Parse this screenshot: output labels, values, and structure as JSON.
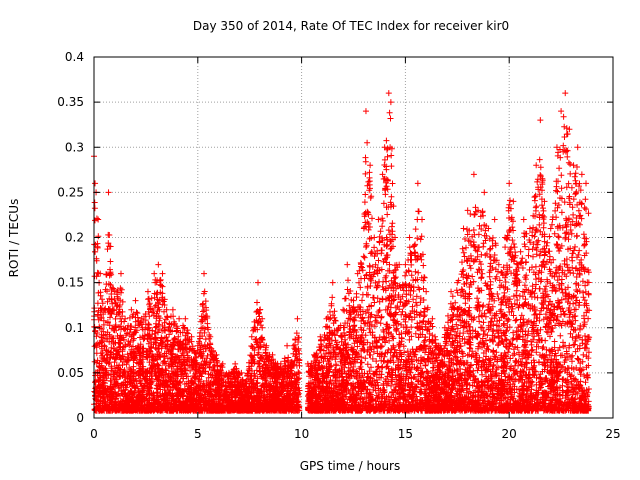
{
  "chart_data": {
    "type": "scatter",
    "title": "Day 350 of 2014, Rate Of TEC Index for receiver kir0",
    "xlabel": "GPS time / hours",
    "ylabel": "ROTI / TECUs",
    "xlim": [
      0,
      25
    ],
    "ylim": [
      0,
      0.4
    ],
    "x_ticks": [
      0,
      5,
      10,
      15,
      20,
      25
    ],
    "y_ticks": [
      0,
      0.05,
      0.1,
      0.15,
      0.2,
      0.25,
      0.3,
      0.35,
      0.4
    ],
    "x_tick_labels": [
      "0",
      "5",
      "10",
      "15",
      "20",
      "25"
    ],
    "y_tick_labels": [
      "0",
      "0.05",
      "0.1",
      "0.15",
      "0.2",
      "0.25",
      "0.3",
      "0.35",
      "0.4"
    ],
    "grid": true,
    "marker": "plus",
    "marker_color": "#ff0000",
    "series": [
      {
        "name": "ROTI",
        "description": "dense point cloud; listed points are the estimated per-interval upper envelope",
        "points": [
          [
            0.0,
            0.29
          ],
          [
            0.05,
            0.26
          ],
          [
            0.1,
            0.25
          ],
          [
            0.2,
            0.22
          ],
          [
            0.3,
            0.16
          ],
          [
            0.5,
            0.12
          ],
          [
            0.7,
            0.25
          ],
          [
            0.8,
            0.19
          ],
          [
            1.0,
            0.14
          ],
          [
            1.3,
            0.16
          ],
          [
            1.5,
            0.11
          ],
          [
            1.8,
            0.12
          ],
          [
            2.0,
            0.13
          ],
          [
            2.3,
            0.11
          ],
          [
            2.6,
            0.14
          ],
          [
            2.9,
            0.16
          ],
          [
            3.1,
            0.17
          ],
          [
            3.3,
            0.16
          ],
          [
            3.5,
            0.12
          ],
          [
            3.8,
            0.12
          ],
          [
            4.1,
            0.11
          ],
          [
            4.4,
            0.11
          ],
          [
            4.7,
            0.09
          ],
          [
            5.0,
            0.08
          ],
          [
            5.3,
            0.16
          ],
          [
            5.6,
            0.09
          ],
          [
            5.9,
            0.07
          ],
          [
            6.2,
            0.06
          ],
          [
            6.5,
            0.05
          ],
          [
            6.8,
            0.06
          ],
          [
            7.1,
            0.05
          ],
          [
            7.3,
            0.04
          ],
          [
            7.6,
            0.09
          ],
          [
            7.9,
            0.15
          ],
          [
            8.1,
            0.11
          ],
          [
            8.3,
            0.08
          ],
          [
            8.6,
            0.07
          ],
          [
            9.0,
            0.06
          ],
          [
            9.3,
            0.08
          ],
          [
            9.6,
            0.08
          ],
          [
            9.8,
            0.11
          ],
          [
            10.3,
            0.06
          ],
          [
            10.6,
            0.07
          ],
          [
            10.9,
            0.09
          ],
          [
            11.2,
            0.11
          ],
          [
            11.5,
            0.15
          ],
          [
            11.8,
            0.1
          ],
          [
            12.0,
            0.12
          ],
          [
            12.2,
            0.17
          ],
          [
            12.5,
            0.13
          ],
          [
            12.7,
            0.16
          ],
          [
            13.0,
            0.21
          ],
          [
            13.1,
            0.34
          ],
          [
            13.3,
            0.28
          ],
          [
            13.5,
            0.2
          ],
          [
            13.7,
            0.22
          ],
          [
            13.9,
            0.27
          ],
          [
            14.0,
            0.3
          ],
          [
            14.2,
            0.36
          ],
          [
            14.3,
            0.35
          ],
          [
            14.5,
            0.2
          ],
          [
            14.7,
            0.17
          ],
          [
            15.0,
            0.17
          ],
          [
            15.2,
            0.2
          ],
          [
            15.4,
            0.19
          ],
          [
            15.6,
            0.26
          ],
          [
            15.8,
            0.22
          ],
          [
            16.0,
            0.14
          ],
          [
            16.3,
            0.11
          ],
          [
            16.6,
            0.08
          ],
          [
            16.9,
            0.1
          ],
          [
            17.2,
            0.14
          ],
          [
            17.5,
            0.15
          ],
          [
            17.8,
            0.21
          ],
          [
            18.0,
            0.23
          ],
          [
            18.3,
            0.27
          ],
          [
            18.5,
            0.23
          ],
          [
            18.8,
            0.25
          ],
          [
            19.0,
            0.21
          ],
          [
            19.3,
            0.22
          ],
          [
            19.5,
            0.17
          ],
          [
            19.8,
            0.2
          ],
          [
            20.0,
            0.26
          ],
          [
            20.2,
            0.24
          ],
          [
            20.4,
            0.17
          ],
          [
            20.7,
            0.22
          ],
          [
            21.0,
            0.21
          ],
          [
            21.3,
            0.28
          ],
          [
            21.5,
            0.33
          ],
          [
            21.7,
            0.24
          ],
          [
            22.0,
            0.21
          ],
          [
            22.3,
            0.3
          ],
          [
            22.5,
            0.34
          ],
          [
            22.7,
            0.36
          ],
          [
            22.9,
            0.32
          ],
          [
            23.1,
            0.28
          ],
          [
            23.3,
            0.3
          ],
          [
            23.5,
            0.27
          ],
          [
            23.7,
            0.26
          ]
        ]
      }
    ],
    "data_gap": [
      9.9,
      10.3
    ]
  }
}
